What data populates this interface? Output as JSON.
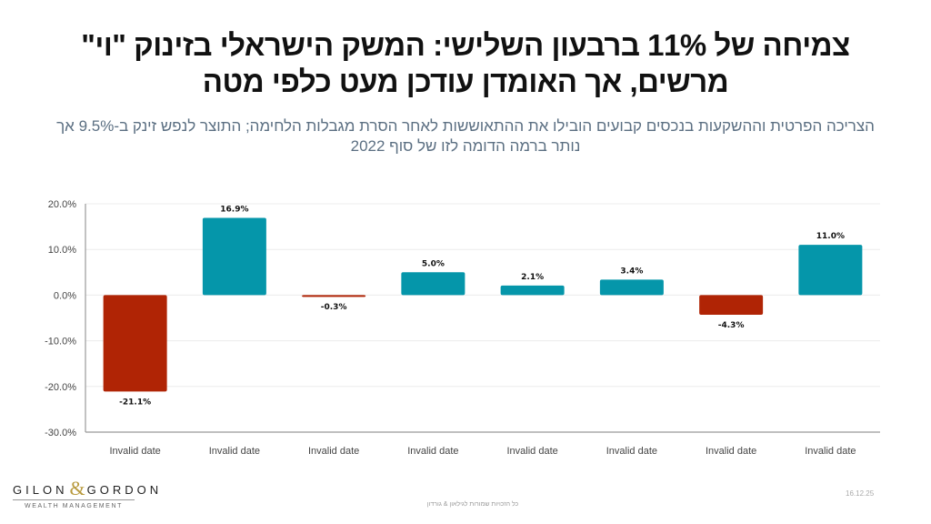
{
  "header": {
    "title_line1": "צמיחה של 11% ברבעון השלישי: המשק הישראלי בזינוק \"וי\"",
    "title_line2": "מרשים, אך האומדן עודכן מעט כלפי מטה",
    "subtitle_line1": "הצריכה הפרטית וההשקעות בנכסים קבועים הובילו את ההתאוששות לאחר הסרת מגבלות הלחימה; התוצר לנפש זינק ב-9.5% אך",
    "subtitle_line2": "נותר ברמה הדומה לזו של סוף 2022"
  },
  "chart_data": {
    "type": "bar",
    "title": "",
    "xlabel": "",
    "ylabel": "",
    "categories": [
      "Invalid date",
      "Invalid date",
      "Invalid date",
      "Invalid date",
      "Invalid date",
      "Invalid date",
      "Invalid date",
      "Invalid date"
    ],
    "values": [
      -21.1,
      16.9,
      -0.3,
      5.0,
      2.1,
      3.4,
      -4.3,
      11.0
    ],
    "data_labels": [
      "-21.1%",
      "16.9%",
      "-0.3%",
      "5.0%",
      "2.1%",
      "3.4%",
      "-4.3%",
      "11.0%"
    ],
    "ylim": [
      -30,
      20
    ],
    "yticks": [
      20,
      10,
      0,
      -10,
      -20,
      -30
    ],
    "ytick_labels": [
      "20.0%",
      "10.0%",
      "0.0%",
      "-10.0%",
      "-20.0%",
      "-30.0%"
    ],
    "grid": true,
    "legend": "none",
    "colors": {
      "positive": "#0596aa",
      "negative": "#b02405"
    }
  },
  "footer": {
    "logo_left": "GILON",
    "logo_amp": "&",
    "logo_right": "GORDON",
    "logo_sub": "WEALTH MANAGEMENT",
    "copyright": "כל הזכויות שמורות לגילאון & גורדון",
    "date": "16.12.25"
  }
}
